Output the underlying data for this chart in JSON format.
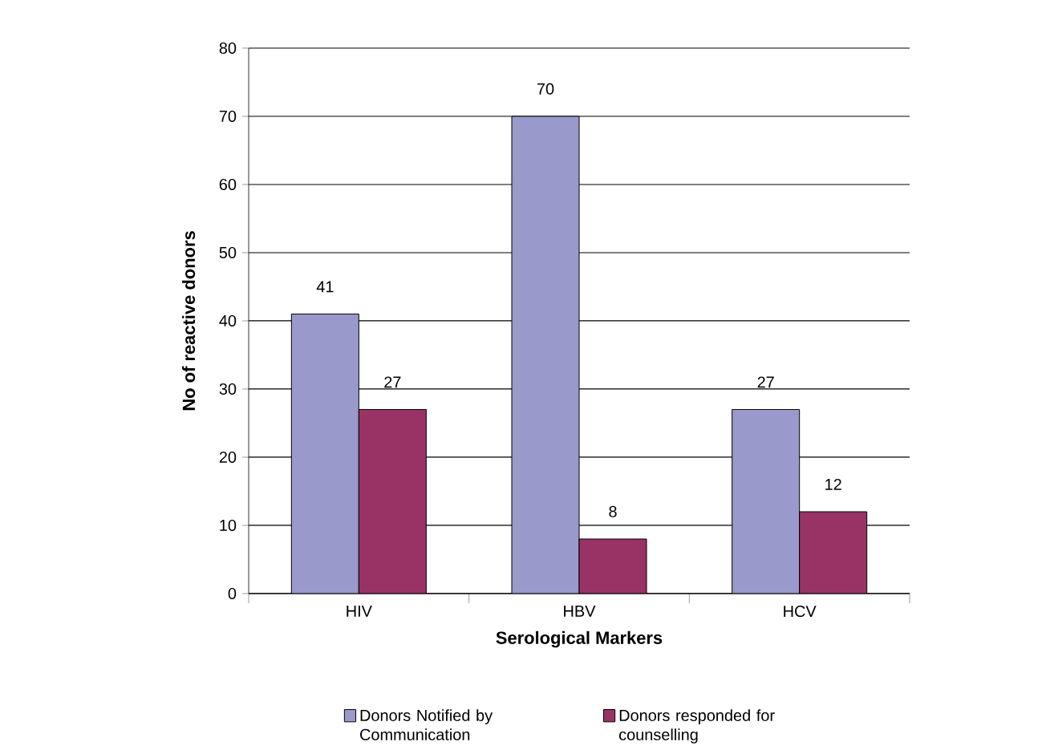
{
  "chart_data": {
    "type": "bar",
    "xlabel": "Serological Markers",
    "ylabel": "No of reactive donors",
    "categories": [
      "HIV",
      "HBV",
      "HCV"
    ],
    "series": [
      {
        "name": "Donors Notified by Communication",
        "color": "#9999cc",
        "values": [
          41,
          70,
          27
        ]
      },
      {
        "name": "Donors responded for counselling",
        "color": "#993366",
        "values": [
          27,
          8,
          12
        ]
      }
    ],
    "ylim": [
      0,
      80
    ],
    "yticks": [
      0,
      10,
      20,
      30,
      40,
      50,
      60,
      70,
      80
    ],
    "grid": "y",
    "legend": "bottom",
    "data_labels": true
  }
}
